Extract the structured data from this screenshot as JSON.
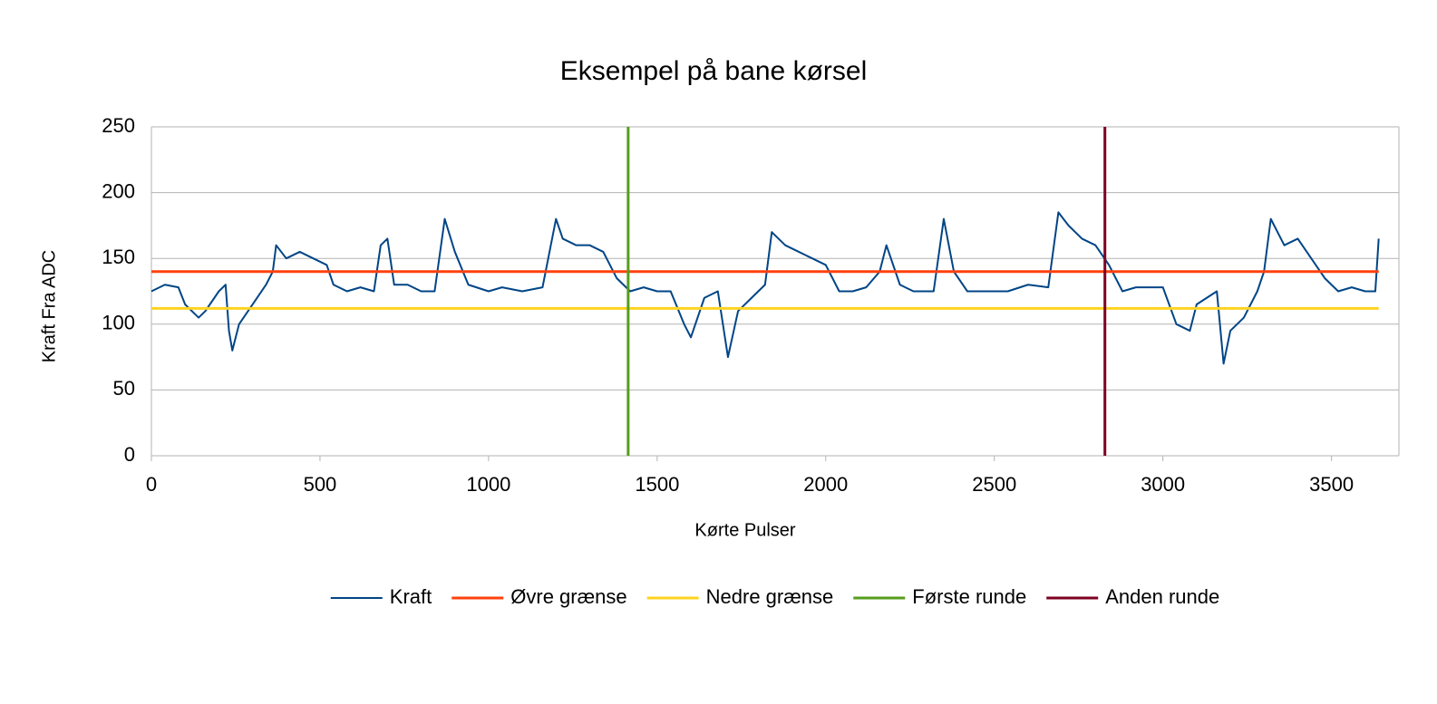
{
  "chart_data": {
    "type": "line",
    "title": "Eksempel på bane kørsel",
    "x_label": "Kørte Pulser",
    "y_label": "Kraft Fra ADC",
    "xlim": [
      0,
      3700
    ],
    "ylim": [
      0,
      250
    ],
    "xticks": [
      0,
      500,
      1000,
      1500,
      2000,
      2500,
      3000,
      3500
    ],
    "yticks": [
      0,
      50,
      100,
      150,
      200,
      250
    ],
    "grid": true,
    "legend": "bottom",
    "series": [
      {
        "name": "Kraft",
        "color": "#004586",
        "x": [
          0,
          40,
          80,
          100,
          140,
          160,
          200,
          220,
          230,
          240,
          260,
          300,
          340,
          360,
          370,
          400,
          440,
          480,
          520,
          540,
          580,
          620,
          660,
          680,
          700,
          720,
          760,
          800,
          840,
          870,
          900,
          940,
          1000,
          1040,
          1100,
          1160,
          1200,
          1220,
          1260,
          1300,
          1340,
          1380,
          1420,
          1460,
          1500,
          1540,
          1580,
          1600,
          1640,
          1680,
          1710,
          1740,
          1780,
          1820,
          1840,
          1880,
          1920,
          1960,
          2000,
          2040,
          2080,
          2120,
          2160,
          2180,
          2220,
          2260,
          2320,
          2350,
          2380,
          2420,
          2480,
          2540,
          2600,
          2660,
          2690,
          2720,
          2760,
          2800,
          2840,
          2880,
          2920,
          2960,
          3000,
          3040,
          3080,
          3100,
          3160,
          3180,
          3200,
          3240,
          3280,
          3300,
          3320,
          3360,
          3400,
          3440,
          3480,
          3520,
          3560,
          3600,
          3630,
          3640
        ],
        "values": [
          125,
          130,
          128,
          115,
          105,
          110,
          125,
          130,
          95,
          80,
          100,
          115,
          130,
          140,
          160,
          150,
          155,
          150,
          145,
          130,
          125,
          128,
          125,
          160,
          165,
          130,
          130,
          125,
          125,
          180,
          155,
          130,
          125,
          128,
          125,
          128,
          180,
          165,
          160,
          160,
          155,
          135,
          125,
          128,
          125,
          125,
          100,
          90,
          120,
          125,
          75,
          110,
          120,
          130,
          170,
          160,
          155,
          150,
          145,
          125,
          125,
          128,
          140,
          160,
          130,
          125,
          125,
          180,
          140,
          125,
          125,
          125,
          130,
          128,
          185,
          175,
          165,
          160,
          145,
          125,
          128,
          128,
          128,
          100,
          95,
          115,
          125,
          70,
          95,
          105,
          125,
          140,
          180,
          160,
          165,
          150,
          135,
          125,
          128,
          125,
          125,
          165
        ]
      },
      {
        "name": "Øvre grænse",
        "color": "#ff420e",
        "x": [
          0,
          3640
        ],
        "values": [
          140,
          140
        ]
      },
      {
        "name": "Nedre grænse",
        "color": "#ffd320",
        "x": [
          0,
          3640
        ],
        "values": [
          112,
          112
        ]
      },
      {
        "name": "Første runde",
        "color": "#579d1c",
        "x": [
          1414,
          1414
        ],
        "values": [
          0,
          250
        ]
      },
      {
        "name": "Anden runde",
        "color": "#7e0021",
        "x": [
          2828,
          2828
        ],
        "values": [
          0,
          250
        ]
      }
    ]
  }
}
